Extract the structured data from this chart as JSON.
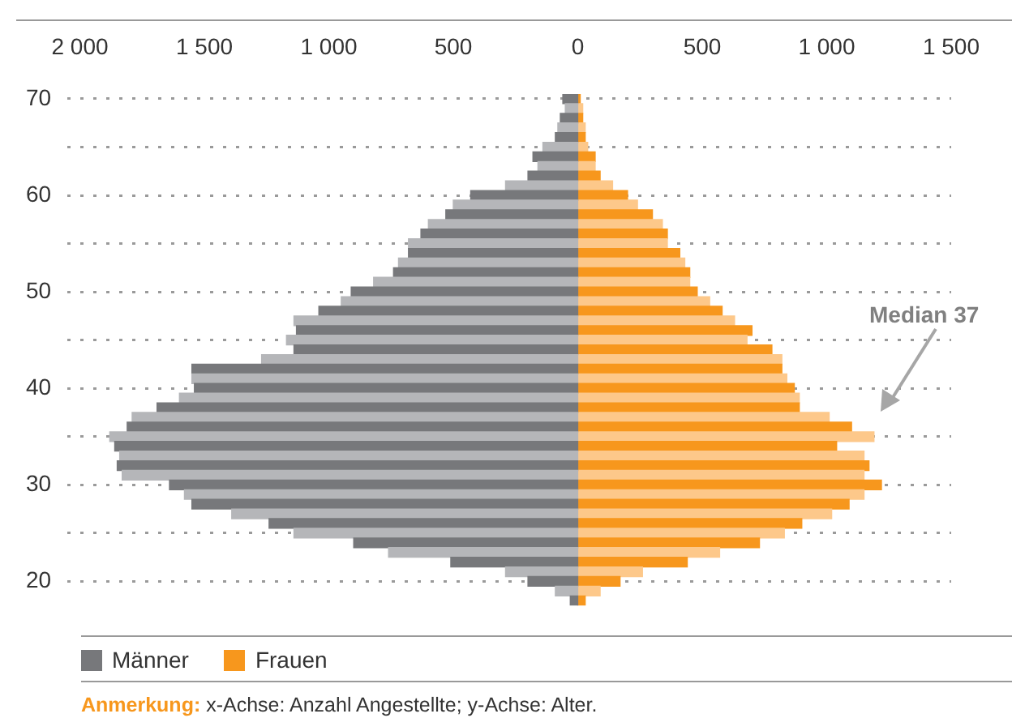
{
  "chart_data": {
    "type": "bar",
    "orientation": "horizontal",
    "categories": [
      "70",
      null,
      null,
      null,
      null,
      null,
      null,
      null,
      null,
      null,
      "60",
      null,
      null,
      null,
      null,
      null,
      null,
      null,
      null,
      null,
      "50",
      null,
      null,
      null,
      null,
      null,
      null,
      null,
      null,
      null,
      "40",
      null,
      null,
      null,
      null,
      null,
      null,
      null,
      null,
      null,
      "30",
      null,
      null,
      null,
      null,
      null,
      null,
      null,
      null,
      null,
      "20",
      null,
      null
    ],
    "series": [
      {
        "name": "Männer",
        "color": "#77787b",
        "colors": [
          "#77787b",
          "#b5b6b9",
          "#77787b",
          "#b5b6b9",
          "#77787b",
          "#b5b6b9",
          "#77787b",
          "#b5b6b9",
          "#77787b",
          "#b5b6b9",
          "#77787b",
          "#b5b6b9",
          "#77787b",
          "#b5b6b9",
          "#77787b",
          "#b5b6b9",
          "#77787b",
          "#b5b6b9",
          "#77787b",
          "#b5b6b9",
          "#77787b",
          "#b5b6b9",
          "#77787b",
          "#b5b6b9",
          "#77787b",
          "#b5b6b9",
          "#77787b",
          "#b5b6b9",
          "#77787b",
          "#b5b6b9",
          "#77787b",
          "#b5b6b9",
          "#77787b",
          "#b5b6b9",
          "#77787b",
          "#b5b6b9",
          "#77787b",
          "#b5b6b9",
          "#77787b",
          "#b5b6b9",
          "#77787b",
          "#b5b6b9",
          "#77787b",
          "#b5b6b9",
          "#77787b",
          "#b5b6b9",
          "#77787b",
          "#b5b6b9",
          "#77787b",
          "#b5b6b9",
          "#77787b",
          "#b5b6b9",
          "#77787b"
        ],
        "values": [
          -60,
          -50,
          -70,
          -80,
          -90,
          -140,
          -180,
          -160,
          -200,
          -290,
          -430,
          -500,
          -530,
          -600,
          -630,
          -680,
          -680,
          -720,
          -740,
          -820,
          -910,
          -950,
          -1040,
          -1140,
          -1130,
          -1170,
          -1140,
          -1270,
          -1550,
          -1550,
          -1540,
          -1600,
          -1690,
          -1790,
          -1810,
          -1880,
          -1860,
          -1840,
          -1850,
          -1830,
          -1640,
          -1580,
          -1550,
          -1390,
          -1240,
          -1140,
          -900,
          -760,
          -510,
          -290,
          -200,
          -90,
          -30
        ]
      },
      {
        "name": "Frauen",
        "color": "#f7971d",
        "colors": [
          "#f7971d",
          "#fdc88a",
          "#f7971d",
          "#fdc88a",
          "#f7971d",
          "#fdc88a",
          "#f7971d",
          "#fdc88a",
          "#f7971d",
          "#fdc88a",
          "#f7971d",
          "#fdc88a",
          "#f7971d",
          "#fdc88a",
          "#f7971d",
          "#fdc88a",
          "#f7971d",
          "#fdc88a",
          "#f7971d",
          "#fdc88a",
          "#f7971d",
          "#fdc88a",
          "#f7971d",
          "#fdc88a",
          "#f7971d",
          "#fdc88a",
          "#f7971d",
          "#fdc88a",
          "#f7971d",
          "#fdc88a",
          "#f7971d",
          "#fdc88a",
          "#f7971d",
          "#fdc88a",
          "#f7971d",
          "#fdc88a",
          "#f7971d",
          "#fdc88a",
          "#f7971d",
          "#fdc88a",
          "#f7971d",
          "#fdc88a",
          "#f7971d",
          "#fdc88a",
          "#f7971d",
          "#fdc88a",
          "#f7971d",
          "#fdc88a",
          "#f7971d",
          "#fdc88a",
          "#f7971d",
          "#fdc88a",
          "#f7971d"
        ],
        "values": [
          10,
          20,
          20,
          30,
          30,
          40,
          70,
          70,
          90,
          140,
          200,
          240,
          300,
          340,
          360,
          360,
          410,
          430,
          450,
          450,
          480,
          530,
          580,
          630,
          700,
          680,
          780,
          820,
          820,
          840,
          870,
          890,
          890,
          1010,
          1100,
          1190,
          1040,
          1150,
          1170,
          1150,
          1220,
          1150,
          1090,
          1020,
          900,
          830,
          730,
          570,
          440,
          260,
          170,
          90,
          30
        ]
      }
    ],
    "xlim": [
      -2050,
      1500
    ],
    "xticks": [
      {
        "value": -2000,
        "label": "2 000"
      },
      {
        "value": -1500,
        "label": "1 500"
      },
      {
        "value": -1000,
        "label": "1 000"
      },
      {
        "value": -500,
        "label": "500"
      },
      0,
      500,
      {
        "value": 1000,
        "label": "1 000"
      },
      {
        "value": 1500,
        "label": "1 500"
      }
    ],
    "grid": "y",
    "legend": "bottom left",
    "stacked": true,
    "annotations": [
      "Median 37",
      "Anmerkung: x-Achse: Anzahl Angestellte; y-Achse: Alter."
    ]
  }
}
